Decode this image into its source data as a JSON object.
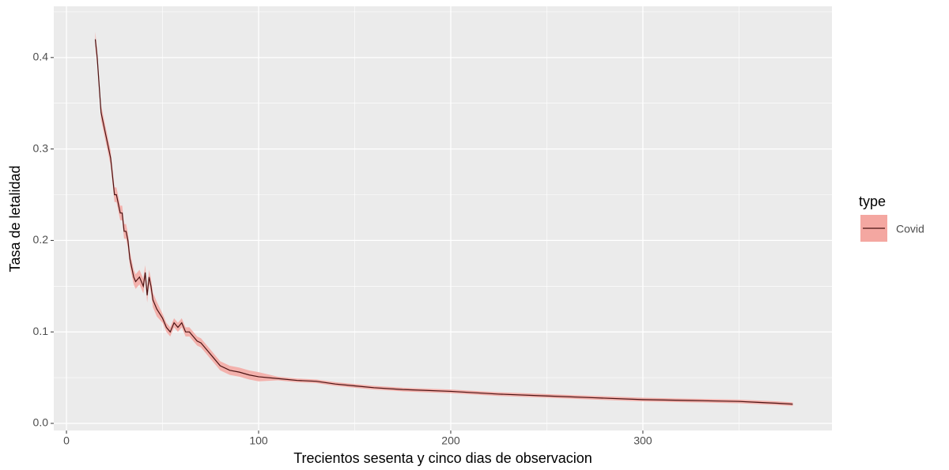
{
  "chart_data": {
    "type": "line",
    "xlabel": "Trecientos sesenta y cinco dias de observacion",
    "ylabel": "Tasa de letalidad",
    "legend_title": "type",
    "legend": "right",
    "grid": true,
    "xlim": [
      -6.6,
      398.4
    ],
    "ylim": [
      -0.0078,
      0.456
    ],
    "xticks": [
      0,
      100,
      200,
      300
    ],
    "yticks": [
      {
        "value": 0,
        "label": "0.0"
      },
      0.1,
      0.2,
      0.3,
      0.4
    ],
    "x": [
      15,
      16,
      17,
      18,
      19,
      20,
      21,
      22,
      23,
      24,
      25,
      26,
      27,
      28,
      29,
      30,
      31,
      32,
      33,
      34,
      35,
      36,
      38,
      40,
      41,
      42,
      43,
      44,
      45,
      47,
      50,
      52,
      54,
      56,
      58,
      60,
      62,
      64,
      66,
      68,
      70,
      72,
      74,
      76,
      78,
      80,
      85,
      90,
      95,
      100,
      110,
      120,
      130,
      140,
      150,
      160,
      175,
      200,
      225,
      250,
      275,
      300,
      325,
      350,
      360,
      370,
      378
    ],
    "series": [
      {
        "name": "Covid",
        "color": "#4a1212",
        "fill": "#f4a7a1",
        "values": [
          0.42,
          0.4,
          0.37,
          0.34,
          0.33,
          0.32,
          0.31,
          0.3,
          0.29,
          0.27,
          0.25,
          0.25,
          0.24,
          0.23,
          0.23,
          0.21,
          0.21,
          0.2,
          0.18,
          0.17,
          0.16,
          0.155,
          0.16,
          0.15,
          0.165,
          0.14,
          0.16,
          0.15,
          0.135,
          0.125,
          0.115,
          0.105,
          0.1,
          0.11,
          0.105,
          0.11,
          0.1,
          0.1,
          0.095,
          0.09,
          0.088,
          0.083,
          0.078,
          0.073,
          0.068,
          0.063,
          0.058,
          0.056,
          0.053,
          0.051,
          0.049,
          0.047,
          0.046,
          0.043,
          0.041,
          0.039,
          0.037,
          0.035,
          0.032,
          0.03,
          0.028,
          0.026,
          0.025,
          0.024,
          0.023,
          0.022,
          0.021
        ],
        "lower": [
          0.412,
          0.392,
          0.362,
          0.332,
          0.322,
          0.312,
          0.302,
          0.292,
          0.282,
          0.262,
          0.242,
          0.242,
          0.232,
          0.222,
          0.222,
          0.202,
          0.202,
          0.192,
          0.172,
          0.162,
          0.152,
          0.147,
          0.152,
          0.142,
          0.157,
          0.132,
          0.152,
          0.142,
          0.127,
          0.117,
          0.11,
          0.1,
          0.095,
          0.105,
          0.1,
          0.105,
          0.095,
          0.095,
          0.09,
          0.085,
          0.083,
          0.078,
          0.073,
          0.068,
          0.063,
          0.058,
          0.053,
          0.051,
          0.048,
          0.046,
          0.047,
          0.045,
          0.044,
          0.041,
          0.039,
          0.037,
          0.035,
          0.033,
          0.03,
          0.028,
          0.026,
          0.024,
          0.023,
          0.022,
          0.021,
          0.02,
          0.019
        ],
        "upper": [
          0.428,
          0.408,
          0.378,
          0.348,
          0.338,
          0.328,
          0.318,
          0.308,
          0.298,
          0.278,
          0.258,
          0.258,
          0.248,
          0.238,
          0.238,
          0.218,
          0.218,
          0.208,
          0.188,
          0.178,
          0.168,
          0.163,
          0.168,
          0.158,
          0.173,
          0.148,
          0.168,
          0.158,
          0.143,
          0.133,
          0.12,
          0.11,
          0.105,
          0.115,
          0.11,
          0.115,
          0.105,
          0.105,
          0.1,
          0.095,
          0.093,
          0.088,
          0.083,
          0.078,
          0.073,
          0.068,
          0.063,
          0.061,
          0.058,
          0.056,
          0.051,
          0.049,
          0.048,
          0.045,
          0.043,
          0.041,
          0.039,
          0.037,
          0.034,
          0.032,
          0.03,
          0.028,
          0.027,
          0.026,
          0.025,
          0.024,
          0.023
        ]
      }
    ]
  }
}
